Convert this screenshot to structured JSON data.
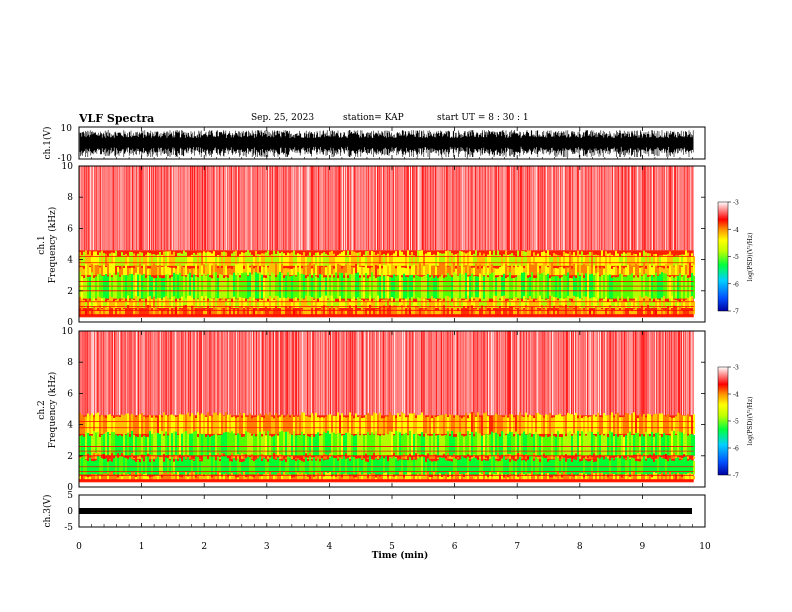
{
  "header": {
    "title": "VLF Spectra",
    "date": "Sep. 25, 2023",
    "station": "station= KAP",
    "start": "start  UT =  8 : 30 : 1"
  },
  "chart_data": [
    {
      "type": "line",
      "title": "",
      "ylabel": "ch.1(V)",
      "ylim": [
        -10,
        10
      ],
      "yticks": [
        "10",
        "-10"
      ],
      "description_of_trace": "dense waveform",
      "xlim": [
        0,
        10
      ]
    },
    {
      "type": "heatmap",
      "ylabel": "ch.1\nFrequency (kHz)",
      "ylabel_lines": [
        "ch.1",
        "Frequency  (kHz)"
      ],
      "ylim": [
        0,
        10
      ],
      "yticks": [
        "0",
        "2",
        "4",
        "6",
        "8",
        "10"
      ],
      "xlim": [
        0,
        10
      ],
      "data_end_min": 9.82,
      "colorbar": {
        "label": "log(PSD)(V²/Hz)",
        "ticks": [
          "-3",
          "-4",
          "-5",
          "-6",
          "-7"
        ],
        "range": [
          -7,
          -3
        ]
      }
    },
    {
      "type": "heatmap",
      "ylabel": "ch.2\nFrequency (kHz)",
      "ylabel_lines": [
        "ch.2",
        "Frequency  (kHz)"
      ],
      "ylim": [
        0,
        10
      ],
      "yticks": [
        "0",
        "2",
        "4",
        "6",
        "8",
        "10"
      ],
      "xlim": [
        0,
        10
      ],
      "data_end_min": 9.82,
      "colorbar": {
        "label": "log(PSD)(V²/Hz)",
        "ticks": [
          "-3",
          "-4",
          "-5",
          "-6",
          "-7"
        ],
        "range": [
          -7,
          -3
        ]
      }
    },
    {
      "type": "line",
      "ylabel": "ch.3(V)",
      "ylim": [
        -5,
        5
      ],
      "yticks": [
        "5",
        "0",
        "-5"
      ],
      "xlim": [
        0,
        10
      ]
    }
  ],
  "xaxis": {
    "label": "Time  (min)",
    "ticks": [
      "0",
      "1",
      "2",
      "3",
      "4",
      "5",
      "6",
      "7",
      "8",
      "9",
      "10"
    ]
  },
  "colormap": [
    "#0000a0",
    "#0040ff",
    "#00c0ff",
    "#00ff60",
    "#a0ff00",
    "#ffff00",
    "#ffa000",
    "#ff2000",
    "#ff0000",
    "#ffb0b0",
    "#ffffff"
  ]
}
